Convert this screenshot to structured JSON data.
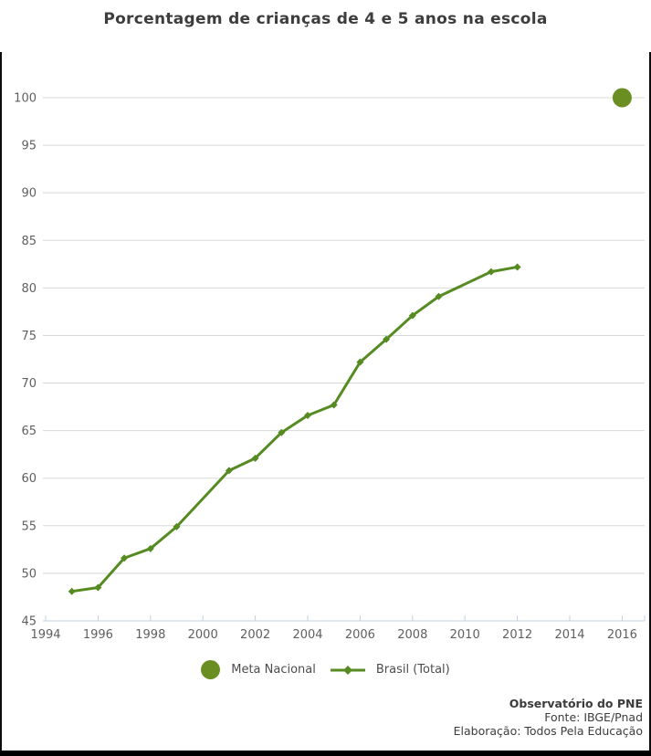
{
  "page": {
    "background": "#ffffff",
    "border_color": "#000000"
  },
  "chart_data": {
    "type": "line",
    "title": "Porcentagem de crianças de 4 e 5 anos na escola",
    "xlabel": "",
    "ylabel": "",
    "xlim": [
      1994,
      2017
    ],
    "ylim": [
      45,
      100
    ],
    "x_ticks": [
      1994,
      1996,
      1998,
      2000,
      2002,
      2004,
      2006,
      2008,
      2010,
      2012,
      2014,
      2016
    ],
    "y_ticks": [
      45,
      50,
      55,
      60,
      65,
      70,
      75,
      80,
      85,
      90,
      95,
      100
    ],
    "grid": true,
    "legend_position": "bottom",
    "series": [
      {
        "name": "Meta Nacional",
        "type": "scatter",
        "marker": "circle",
        "color": "#6b8e23",
        "x": [
          2016
        ],
        "y": [
          100
        ]
      },
      {
        "name": "Brasil (Total)",
        "type": "line",
        "marker": "diamond",
        "color": "#568b22",
        "x": [
          1995,
          1996,
          1997,
          1998,
          1999,
          2001,
          2002,
          2003,
          2004,
          2005,
          2006,
          2007,
          2008,
          2009,
          2011,
          2012
        ],
        "y": [
          48.1,
          48.5,
          51.6,
          52.6,
          54.9,
          60.8,
          62.1,
          64.8,
          66.6,
          67.7,
          72.2,
          74.6,
          77.1,
          79.1,
          81.7,
          82.2
        ]
      }
    ],
    "colors": {
      "grid": "#d8d8d8",
      "axis": "#c0d0e0",
      "tick_label": "#606060",
      "title": "#3d3d3d",
      "legend_text": "#4d4d4d"
    }
  },
  "footer": {
    "org": "Observatório do PNE",
    "source": "Fonte: IBGE/Pnad",
    "elaboration": "Elaboração: Todos Pela Educação"
  }
}
